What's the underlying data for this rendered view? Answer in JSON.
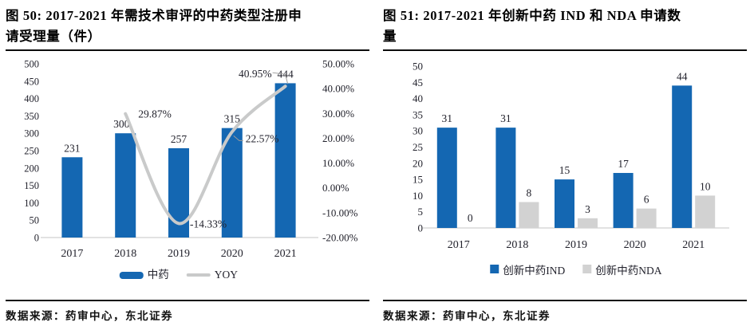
{
  "page": {
    "background": "#ffffff"
  },
  "colors": {
    "bar_blue": "#1467B2",
    "line_gray": "#C9CACA",
    "bar_gray": "#D2D2D2",
    "axis_line": "#D8D8D8",
    "label_text": "#22222c"
  },
  "figures": [
    {
      "id": "figure-50",
      "title": "图 50: 2017-2021 年需技术审评的中药类型注册申\n请受理量（件）",
      "source": "数据来源：药审中心，东北证券"
    },
    {
      "id": "figure-51",
      "title": "图 51: 2017-2021 年创新中药 IND 和 NDA 申请数\n量",
      "source": "数据来源：药审中心，东北证券"
    }
  ],
  "chart_data": [
    {
      "type": "bar",
      "subtype": "combo-bar-line",
      "title": "2017-2021 年需技术审评的中药类型注册申请受理量（件）",
      "categories": [
        "2017",
        "2018",
        "2019",
        "2020",
        "2021"
      ],
      "series": [
        {
          "name": "中药",
          "type": "bar",
          "axis": "left",
          "color": "#1467B2",
          "values": [
            231,
            300,
            257,
            315,
            444
          ]
        },
        {
          "name": "YOY",
          "type": "line",
          "axis": "right",
          "color": "#C9CACA",
          "values": [
            null,
            29.87,
            -14.33,
            22.57,
            40.95
          ],
          "labels": [
            null,
            "29.87%",
            "-14.33%",
            "22.57%",
            "40.95%"
          ]
        }
      ],
      "left_axis": {
        "min": 0,
        "max": 500,
        "step": 50
      },
      "right_axis": {
        "min": -20,
        "max": 50,
        "step": 10,
        "suffix": "%",
        "decimals": 2
      },
      "grid": false,
      "legend_position": "bottom",
      "legend": [
        {
          "label": "中药",
          "swatch": "bar",
          "color": "#1467B2"
        },
        {
          "label": "YOY",
          "swatch": "line",
          "color": "#C9CACA"
        }
      ]
    },
    {
      "type": "bar",
      "subtype": "grouped-bar",
      "title": "2017-2021 年创新中药 IND 和 NDA 申请数量",
      "categories": [
        "2017",
        "2018",
        "2019",
        "2020",
        "2021"
      ],
      "series": [
        {
          "name": "创新中药IND",
          "color": "#1467B2",
          "values": [
            31,
            31,
            15,
            17,
            44
          ]
        },
        {
          "name": "创新中药NDA",
          "color": "#D2D2D2",
          "values": [
            0,
            8,
            3,
            6,
            10
          ]
        }
      ],
      "y_axis": {
        "min": 0,
        "max": 50,
        "step": 5
      },
      "grid": false,
      "legend_position": "bottom",
      "legend": [
        {
          "label": "创新中药IND",
          "swatch": "square",
          "color": "#1467B2"
        },
        {
          "label": "创新中药NDA",
          "swatch": "square",
          "color": "#D2D2D2"
        }
      ]
    }
  ]
}
